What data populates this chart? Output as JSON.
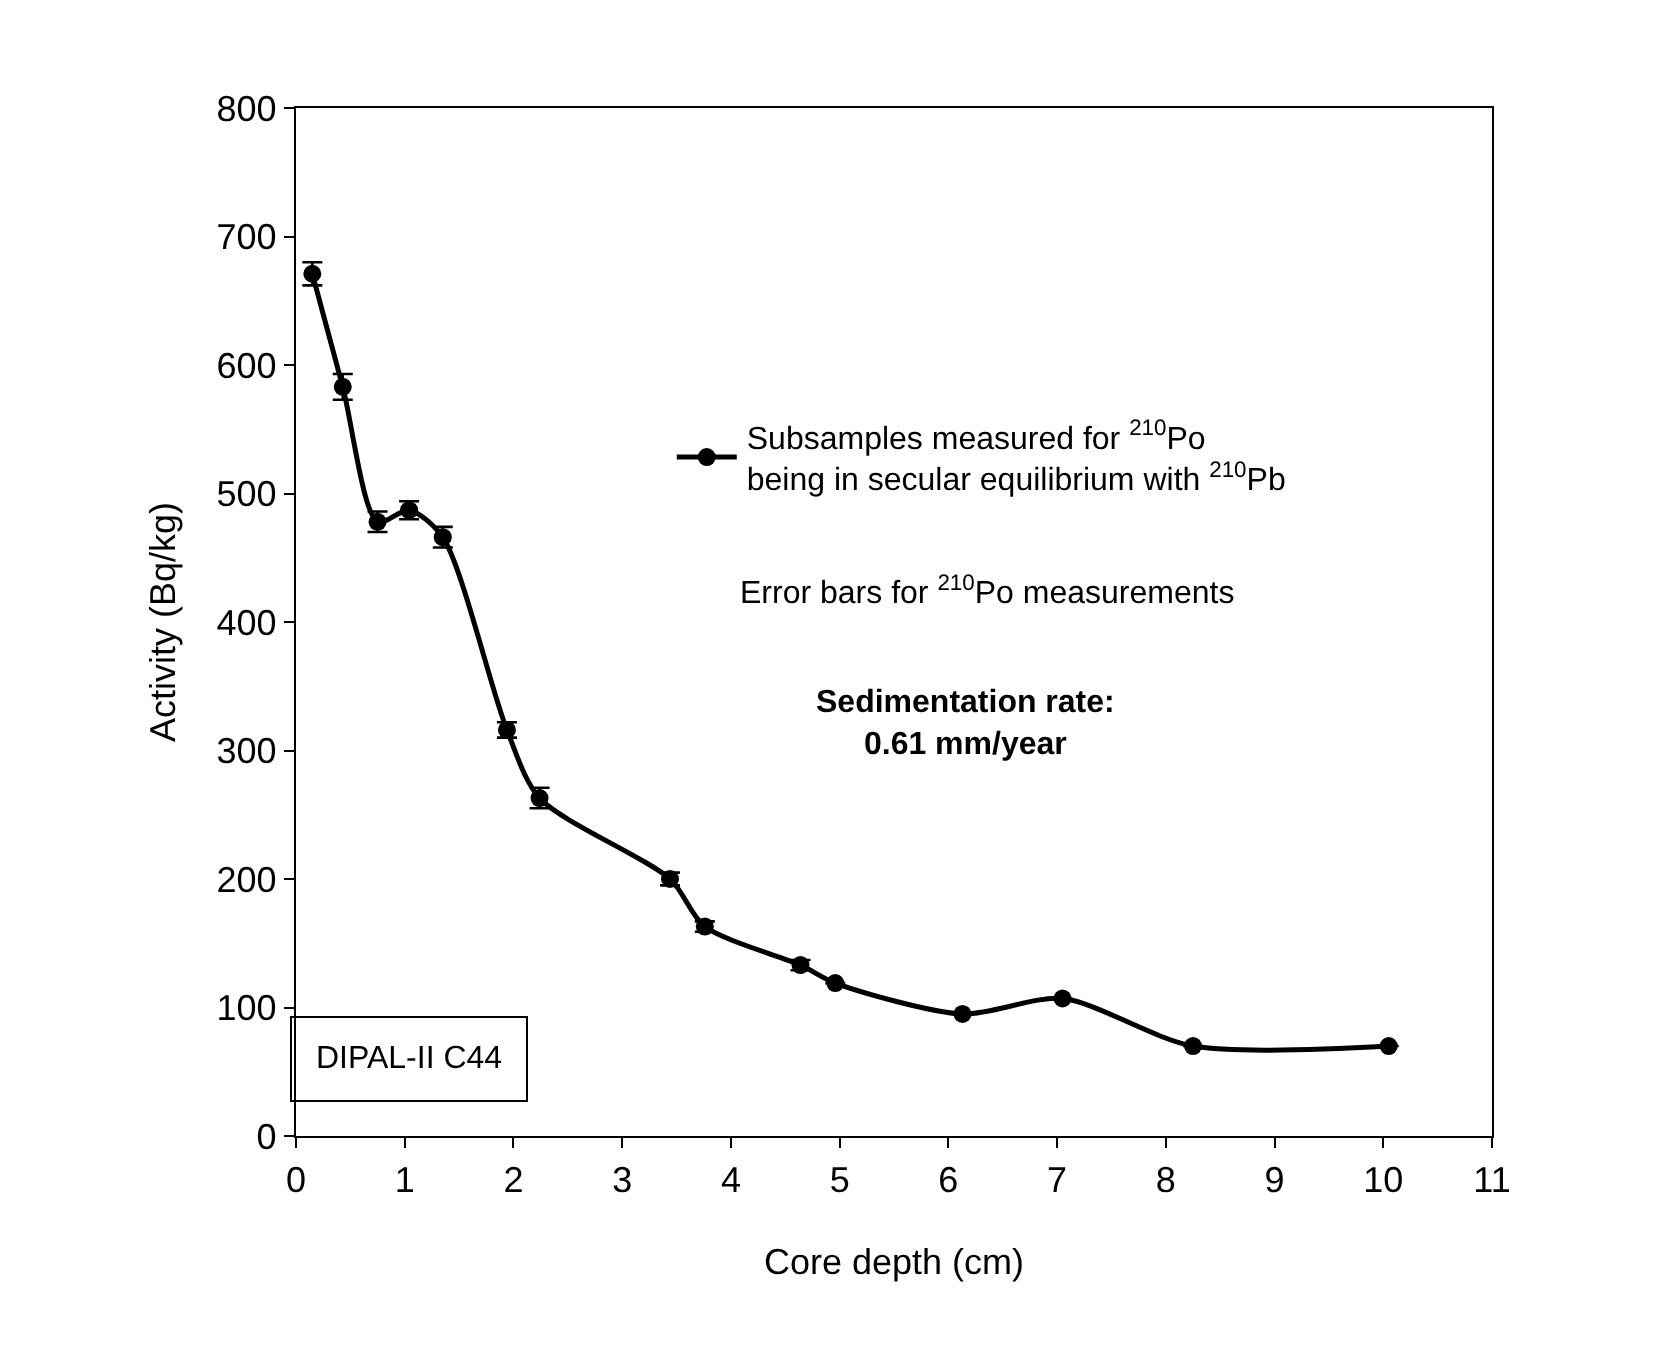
{
  "chart_data": {
    "type": "line",
    "xlabel": "Core depth (cm)",
    "ylabel": "Activity (Bq/kg)",
    "x": [
      0.15,
      0.43,
      0.75,
      1.04,
      1.35,
      1.94,
      2.24,
      3.44,
      3.76,
      4.64,
      4.96,
      6.13,
      7.05,
      8.25,
      10.05
    ],
    "series": [
      {
        "name": "Subsamples measured for $^{210}$Po\nbeing in secular equilibrium with $^{210}$Pb",
        "color": "#000000",
        "values": [
          671,
          583,
          478,
          487,
          466,
          316,
          263,
          200,
          163,
          133,
          119,
          95,
          107,
          70,
          70
        ],
        "errors": [
          9,
          10,
          8,
          7,
          8,
          6,
          8,
          5,
          4,
          4,
          null,
          null,
          null,
          null,
          null
        ]
      }
    ],
    "marker": "circle",
    "line_style": "solid",
    "legend": "right",
    "xlim": [
      0,
      11
    ],
    "xticks": [
      0,
      1,
      2,
      3,
      4,
      5,
      6,
      7,
      8,
      9,
      10,
      11
    ],
    "ylim": [
      0,
      800
    ],
    "yticks": [
      0,
      100,
      200,
      300,
      400,
      500,
      600,
      700,
      800
    ],
    "annotations": [
      "Error bars for $^{210}$Po measurements",
      "Sedimentation rate:\n0.61 mm/year",
      "DIPAL-II C44"
    ]
  }
}
